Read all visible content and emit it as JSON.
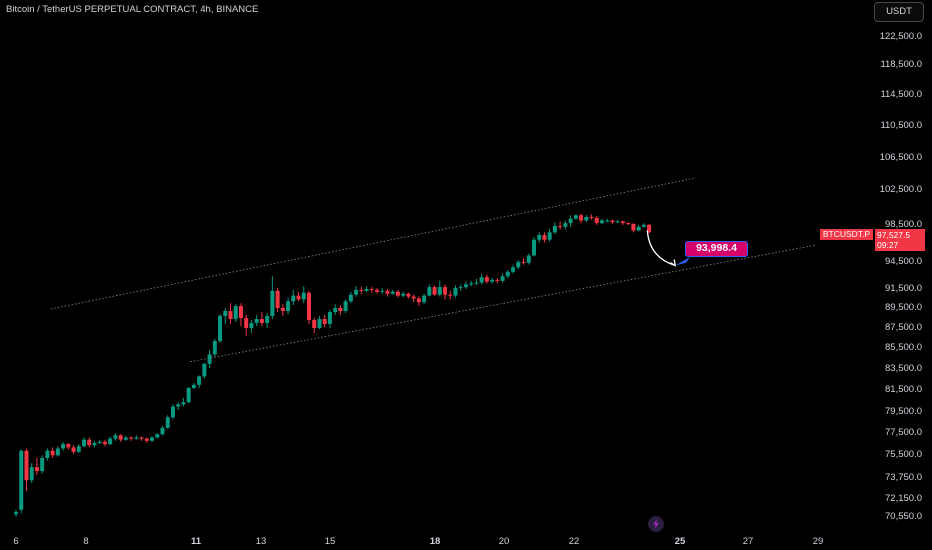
{
  "header": {
    "symbol_title": "Bitcoin / TetherUS PERPETUAL CONTRACT, 4h, BINANCE",
    "currency_button": "USDT"
  },
  "price_axis": {
    "ticks": [
      "122,500.0",
      "118,500.0",
      "114,500.0",
      "110,500.0",
      "106,500.0",
      "102,500.0",
      "98,500.0",
      "94,500.0",
      "91,500.0",
      "89,500.0",
      "87,500.0",
      "85,500.0",
      "83,500.0",
      "81,500.0",
      "79,500.0",
      "77,500.0",
      "75,500.0",
      "73,750.0",
      "72,150.0",
      "70,550.0"
    ],
    "current_price": "97,527.5",
    "countdown": "09:27",
    "symbol_tag": "BTCUSDT.P"
  },
  "time_axis": {
    "ticks": [
      {
        "label": "6",
        "bold": false
      },
      {
        "label": "8",
        "bold": false
      },
      {
        "label": "11",
        "bold": true
      },
      {
        "label": "13",
        "bold": false
      },
      {
        "label": "15",
        "bold": false
      },
      {
        "label": "18",
        "bold": true
      },
      {
        "label": "20",
        "bold": false
      },
      {
        "label": "22",
        "bold": false
      },
      {
        "label": "25",
        "bold": true
      },
      {
        "label": "27",
        "bold": false
      },
      {
        "label": "29",
        "bold": false
      }
    ]
  },
  "annotation": {
    "target_price": "93,998.4"
  },
  "colors": {
    "up": "#089981",
    "down": "#f23645",
    "grid_text": "#d1d4dc",
    "label_bg": "#d6006b",
    "label_border": "#2962ff"
  },
  "icons": {
    "goto_realtime": "lightning-icon"
  },
  "chart_data": {
    "type": "candlestick",
    "interval": "4h",
    "x_range": [
      "6",
      "29"
    ],
    "y_range": [
      70000,
      124000
    ],
    "channel": {
      "upper": [
        [
          7.0,
          89300
        ],
        [
          25.5,
          103900
        ]
      ],
      "lower": [
        [
          11.0,
          84100
        ],
        [
          28.9,
          96200
        ]
      ]
    },
    "arrow": {
      "from": [
        24.1,
        97800
      ],
      "to": [
        24.9,
        94000
      ]
    },
    "candles": [
      [
        6.0,
        70700,
        70900,
        70500,
        71100
      ],
      [
        6.15,
        71100,
        75800,
        70800,
        75900
      ],
      [
        6.3,
        75800,
        73500,
        72700,
        76000
      ],
      [
        6.45,
        73500,
        74500,
        73300,
        74800
      ],
      [
        6.6,
        74500,
        74200,
        73900,
        75200
      ],
      [
        6.75,
        74200,
        75200,
        74000,
        75400
      ],
      [
        6.9,
        75200,
        75800,
        75000,
        76000
      ],
      [
        7.05,
        75800,
        75400,
        75200,
        76100
      ],
      [
        7.2,
        75400,
        76000,
        75300,
        76200
      ],
      [
        7.35,
        76000,
        76400,
        75800,
        76600
      ],
      [
        7.5,
        76400,
        76100,
        75900,
        76500
      ],
      [
        7.65,
        76100,
        75700,
        75500,
        76300
      ],
      [
        7.8,
        75700,
        76200,
        75600,
        76400
      ],
      [
        7.95,
        76200,
        76800,
        76100,
        77000
      ],
      [
        8.1,
        76800,
        76300,
        76100,
        77000
      ],
      [
        8.25,
        76300,
        76500,
        76100,
        76700
      ],
      [
        8.4,
        76500,
        76600,
        76400,
        76800
      ],
      [
        8.55,
        76600,
        76400,
        76200,
        76800
      ],
      [
        8.7,
        76400,
        76900,
        76300,
        77100
      ],
      [
        8.85,
        76900,
        77200,
        76700,
        77400
      ],
      [
        9.0,
        77200,
        76800,
        76600,
        77300
      ],
      [
        9.15,
        76800,
        77000,
        76700,
        77200
      ],
      [
        9.3,
        77000,
        76900,
        76700,
        77100
      ],
      [
        9.45,
        76900,
        77000,
        76800,
        77200
      ],
      [
        9.6,
        77000,
        76900,
        76700,
        77100
      ],
      [
        9.75,
        76900,
        76700,
        76500,
        77000
      ],
      [
        9.9,
        76700,
        77000,
        76600,
        77100
      ],
      [
        10.05,
        77000,
        77300,
        76900,
        77400
      ],
      [
        10.2,
        77300,
        77900,
        77200,
        78100
      ],
      [
        10.35,
        77900,
        78900,
        77800,
        79100
      ],
      [
        10.5,
        78900,
        79900,
        78700,
        80100
      ],
      [
        10.65,
        79900,
        80100,
        79600,
        80300
      ],
      [
        10.8,
        80100,
        80300,
        79900,
        80700
      ],
      [
        10.95,
        80300,
        81600,
        80200,
        81700
      ],
      [
        11.1,
        81600,
        81900,
        81500,
        82100
      ],
      [
        11.25,
        81900,
        82700,
        81600,
        82800
      ],
      [
        11.4,
        82700,
        83900,
        82500,
        84000
      ],
      [
        11.55,
        83900,
        84800,
        83500,
        85200
      ],
      [
        11.7,
        84800,
        86100,
        84600,
        86300
      ],
      [
        11.85,
        86100,
        88600,
        85900,
        88800
      ],
      [
        12.0,
        88600,
        89100,
        87800,
        89400
      ],
      [
        12.15,
        89100,
        88300,
        87800,
        89900
      ],
      [
        12.3,
        88300,
        89600,
        88000,
        89800
      ],
      [
        12.45,
        89600,
        88400,
        87600,
        89900
      ],
      [
        12.6,
        88400,
        87400,
        86600,
        88700
      ],
      [
        12.75,
        87400,
        87900,
        86900,
        88200
      ],
      [
        12.9,
        87900,
        88300,
        87600,
        88700
      ],
      [
        13.05,
        88300,
        87900,
        87600,
        89000
      ],
      [
        13.2,
        87900,
        88600,
        87400,
        88900
      ],
      [
        13.35,
        88600,
        91200,
        88300,
        92800
      ],
      [
        13.5,
        91200,
        89400,
        89000,
        91500
      ],
      [
        13.65,
        89400,
        89100,
        88600,
        89800
      ],
      [
        13.8,
        89100,
        90100,
        88800,
        90500
      ],
      [
        13.95,
        90100,
        90700,
        89700,
        91300
      ],
      [
        14.1,
        90700,
        90300,
        90100,
        91100
      ],
      [
        14.25,
        90300,
        91000,
        89900,
        91700
      ],
      [
        14.4,
        91000,
        88200,
        87800,
        91200
      ],
      [
        14.55,
        88200,
        87400,
        86900,
        88400
      ],
      [
        14.7,
        87400,
        88300,
        87300,
        88600
      ],
      [
        14.85,
        88300,
        87800,
        87500,
        88700
      ],
      [
        15.0,
        87800,
        89000,
        87400,
        89200
      ],
      [
        15.15,
        89000,
        89400,
        88700,
        89800
      ],
      [
        15.3,
        89400,
        89100,
        88700,
        89700
      ],
      [
        15.45,
        89100,
        90100,
        88900,
        90300
      ],
      [
        15.6,
        90100,
        90800,
        89900,
        91100
      ],
      [
        15.75,
        90800,
        91300,
        90600,
        91700
      ],
      [
        15.9,
        91300,
        91200,
        90900,
        91600
      ],
      [
        16.05,
        91200,
        91400,
        91100,
        91700
      ],
      [
        16.2,
        91400,
        91300,
        91000,
        91600
      ],
      [
        16.35,
        91300,
        91100,
        90900,
        91500
      ],
      [
        16.5,
        91100,
        91200,
        90900,
        91500
      ],
      [
        16.65,
        91200,
        90900,
        90600,
        91400
      ],
      [
        16.8,
        90900,
        91100,
        90800,
        91300
      ],
      [
        16.95,
        91100,
        90700,
        90500,
        91300
      ],
      [
        17.1,
        90700,
        90900,
        90500,
        91100
      ],
      [
        17.25,
        90900,
        90600,
        90400,
        91000
      ],
      [
        17.4,
        90600,
        90400,
        90000,
        90800
      ],
      [
        17.55,
        90400,
        90000,
        89600,
        90600
      ],
      [
        17.7,
        90000,
        90700,
        89800,
        90900
      ],
      [
        17.85,
        90700,
        91600,
        90600,
        91900
      ],
      [
        18.0,
        91600,
        90800,
        90700,
        91800
      ],
      [
        18.15,
        90800,
        91600,
        90600,
        92300
      ],
      [
        18.3,
        91600,
        90800,
        90300,
        91900
      ],
      [
        18.45,
        90800,
        90700,
        90300,
        91200
      ],
      [
        18.6,
        90700,
        91500,
        90500,
        91800
      ],
      [
        18.75,
        91500,
        91600,
        91200,
        91900
      ],
      [
        18.9,
        91600,
        91900,
        91400,
        92200
      ],
      [
        19.05,
        91900,
        92000,
        91700,
        92300
      ],
      [
        19.2,
        92000,
        92100,
        91800,
        92500
      ],
      [
        19.35,
        92100,
        92700,
        91900,
        93100
      ],
      [
        19.5,
        92700,
        92200,
        92000,
        93000
      ],
      [
        19.65,
        92200,
        92400,
        92000,
        92600
      ],
      [
        19.8,
        92400,
        92300,
        92000,
        92600
      ],
      [
        19.95,
        92300,
        92800,
        92100,
        93100
      ],
      [
        20.1,
        92800,
        93300,
        92600,
        93500
      ],
      [
        20.25,
        93300,
        93800,
        93100,
        94100
      ],
      [
        20.4,
        93800,
        94400,
        93600,
        94600
      ],
      [
        20.55,
        94400,
        94300,
        94100,
        94800
      ],
      [
        20.7,
        94300,
        95100,
        94100,
        95300
      ],
      [
        20.85,
        95100,
        96800,
        95000,
        97100
      ],
      [
        21.0,
        96800,
        97300,
        96500,
        97600
      ],
      [
        21.15,
        97300,
        96800,
        96500,
        97600
      ],
      [
        21.3,
        96800,
        97600,
        96600,
        98000
      ],
      [
        21.45,
        97600,
        98300,
        97400,
        98700
      ],
      [
        21.6,
        98300,
        98200,
        97900,
        98800
      ],
      [
        21.75,
        98200,
        98600,
        97900,
        98900
      ],
      [
        21.9,
        98600,
        99100,
        98200,
        99500
      ],
      [
        22.05,
        99100,
        99500,
        99000,
        99600
      ],
      [
        22.2,
        99500,
        98900,
        98600,
        99700
      ],
      [
        22.35,
        98900,
        99300,
        98700,
        99500
      ],
      [
        22.5,
        99300,
        99200,
        99000,
        99600
      ],
      [
        22.65,
        99200,
        98600,
        98400,
        99400
      ],
      [
        22.8,
        98600,
        98900,
        98500,
        99100
      ],
      [
        22.95,
        98900,
        98900,
        98700,
        99100
      ],
      [
        23.1,
        98900,
        98700,
        98500,
        99000
      ],
      [
        23.25,
        98700,
        98800,
        98600,
        99000
      ],
      [
        23.4,
        98800,
        98600,
        98400,
        98900
      ],
      [
        23.55,
        98600,
        98500,
        98400,
        98700
      ],
      [
        23.7,
        98500,
        97800,
        97600,
        98600
      ],
      [
        23.85,
        97800,
        98200,
        97700,
        98400
      ],
      [
        24.0,
        98200,
        98400,
        98100,
        98600
      ],
      [
        24.15,
        98400,
        97600,
        97500,
        98500
      ]
    ]
  }
}
